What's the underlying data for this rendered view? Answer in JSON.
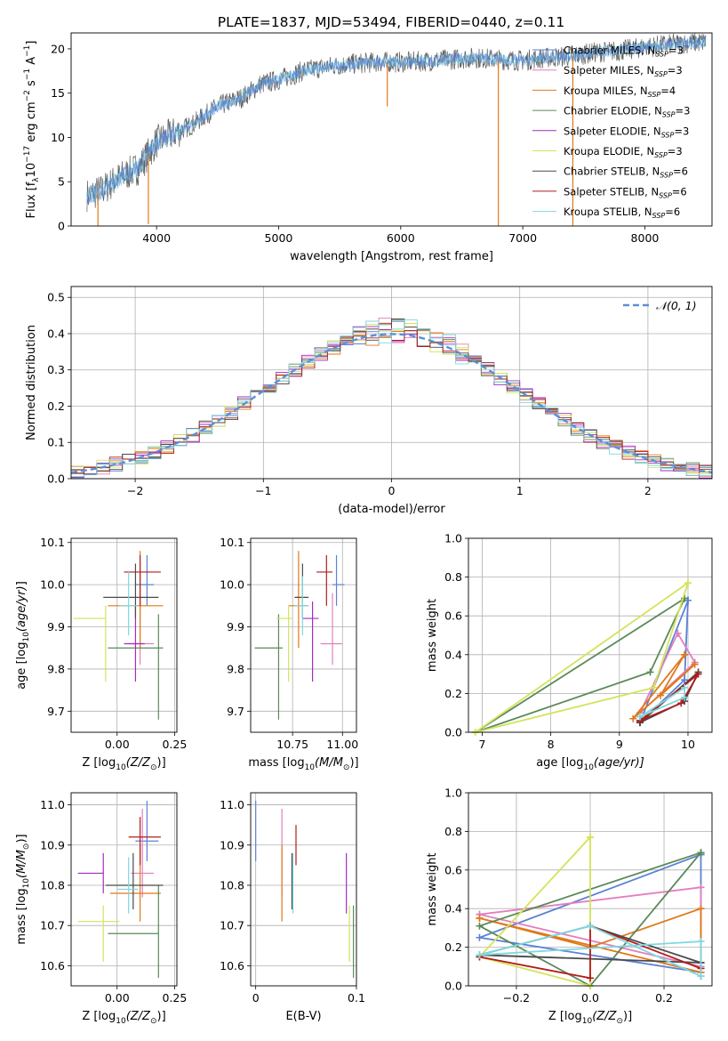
{
  "figure": {
    "title": "PLATE=1837, MJD=53494, FIBERID=0440, z=0.11"
  },
  "legend": [
    {
      "label": "Chabrier MILES, N",
      "sub": "SSP",
      "tail": "=3",
      "color": "#5b82d6"
    },
    {
      "label": "Salpeter MILES, N",
      "sub": "SSP",
      "tail": "=3",
      "color": "#e27fc0"
    },
    {
      "label": "Kroupa MILES, N",
      "sub": "SSP",
      "tail": "=4",
      "color": "#e0791a"
    },
    {
      "label": "Chabrier ELODIE, N",
      "sub": "SSP",
      "tail": "=3",
      "color": "#5a8a5a"
    },
    {
      "label": "Salpeter ELODIE, N",
      "sub": "SSP",
      "tail": "=3",
      "color": "#a32cc0"
    },
    {
      "label": "Kroupa ELODIE, N",
      "sub": "SSP",
      "tail": "=3",
      "color": "#d4e35a"
    },
    {
      "label": "Chabrier STELIB, N",
      "sub": "SSP",
      "tail": "=6",
      "color": "#4a4a4a"
    },
    {
      "label": "Salpeter STELIB, N",
      "sub": "SSP",
      "tail": "=6",
      "color": "#b31b1b"
    },
    {
      "label": "Kroupa STELIB, N",
      "sub": "SSP",
      "tail": "=6",
      "color": "#7fd8e0"
    }
  ],
  "chart_data": [
    {
      "id": "spectrum",
      "type": "line",
      "xlabel": "wavelength [Angstrom, rest frame]",
      "ylabel": "Flux [f",
      "xlim": [
        3300,
        8550
      ],
      "ylim": [
        0,
        21.8
      ],
      "xticks": [
        "4000",
        "5000",
        "6000",
        "7000",
        "8000"
      ],
      "yticks": [
        "0",
        "5",
        "10",
        "15",
        "20"
      ],
      "x": [
        3450,
        3550,
        3700,
        3850,
        4000,
        4150,
        4300,
        4500,
        4700,
        4850,
        5000,
        5200,
        5400,
        5600,
        5800,
        6000,
        6200,
        6400,
        6600,
        6800,
        7000,
        7200,
        7400,
        7600,
        7800,
        8000,
        8200,
        8400,
        8500
      ],
      "values": [
        3.5,
        4.0,
        5.5,
        6.5,
        9.5,
        10.5,
        11.5,
        13.5,
        14.5,
        16.0,
        16.5,
        17.5,
        18.0,
        18.3,
        18.5,
        18.5,
        18.6,
        18.8,
        19.0,
        18.8,
        18.7,
        19.0,
        19.2,
        19.6,
        19.8,
        20.2,
        20.5,
        20.7,
        20.8
      ],
      "grid": false,
      "legend_position": "top-right"
    },
    {
      "id": "residuals",
      "type": "line",
      "xlabel": "(data-model)/error",
      "ylabel": "Normed distribution",
      "xlim": [
        -2.5,
        2.5
      ],
      "ylim": [
        0,
        0.53
      ],
      "xticks": [
        "−2",
        "−1",
        "0",
        "1",
        "2"
      ],
      "yticks": [
        "0.0",
        "0.1",
        "0.2",
        "0.3",
        "0.4",
        "0.5"
      ],
      "bin_width": 0.1,
      "hist_max": [
        0.02,
        0.03,
        0.04,
        0.045,
        0.05,
        0.07,
        0.08,
        0.1,
        0.12,
        0.14,
        0.17,
        0.2,
        0.23,
        0.25,
        0.28,
        0.31,
        0.34,
        0.37,
        0.39,
        0.39,
        0.4,
        0.42,
        0.43,
        0.45,
        0.47,
        0.51,
        0.48,
        0.45,
        0.42,
        0.38,
        0.33,
        0.3,
        0.27,
        0.24,
        0.21,
        0.18,
        0.15,
        0.12,
        0.1,
        0.09,
        0.08,
        0.07,
        0.06,
        0.055,
        0.05,
        0.04,
        0.035,
        0.03,
        0.025,
        0.02
      ],
      "series": [
        {
          "name": "𝒩(0, 1)",
          "mean": 0,
          "sigma": 1
        }
      ],
      "grid": true,
      "legend_position": "top-right"
    },
    {
      "id": "Z-age",
      "type": "scatter",
      "xlabel": "Z [log",
      "ylabel": "age  [log",
      "xlim": [
        -0.2,
        0.26
      ],
      "ylim": [
        9.65,
        10.11
      ],
      "xticks": [
        "0.00",
        "0.25"
      ],
      "yticks": [
        "9.7",
        "9.8",
        "9.9",
        "10.0",
        "10.1"
      ],
      "points": [
        {
          "x": 0.13,
          "y": 10.0,
          "xerr": [
            0.05,
            0.03
          ],
          "yerr": [
            0.05,
            0.07
          ],
          "color": "#5b82d6"
        },
        {
          "x": 0.1,
          "y": 9.86,
          "xerr": [
            0.05,
            0.06
          ],
          "yerr": [
            0.05,
            0.12
          ],
          "color": "#e27fc0"
        },
        {
          "x": 0.1,
          "y": 9.95,
          "xerr": [
            0.14,
            0.1
          ],
          "yerr": [
            0.1,
            0.13
          ],
          "color": "#e0791a"
        },
        {
          "x": 0.18,
          "y": 9.85,
          "xerr": [
            0.22,
            0.02
          ],
          "yerr": [
            0.17,
            0.08
          ],
          "color": "#5a8a5a"
        },
        {
          "x": 0.08,
          "y": 9.86,
          "xerr": [
            0.05,
            0.04
          ],
          "yerr": [
            0.09,
            0.09
          ],
          "color": "#a32cc0"
        },
        {
          "x": -0.05,
          "y": 9.92,
          "xerr": [
            0.14,
            0.0
          ],
          "yerr": [
            0.15,
            0.03
          ],
          "color": "#d4e35a"
        },
        {
          "x": 0.08,
          "y": 9.97,
          "xerr": [
            0.14,
            0.1
          ],
          "yerr": [
            0.05,
            0.08
          ],
          "color": "#4a4a4a"
        },
        {
          "x": 0.1,
          "y": 10.03,
          "xerr": [
            0.07,
            0.09
          ],
          "yerr": [
            0.08,
            0.04
          ],
          "color": "#b31b1b"
        },
        {
          "x": 0.05,
          "y": 9.95,
          "xerr": [
            0.04,
            0.04
          ],
          "yerr": [
            0.07,
            0.08
          ],
          "color": "#7fd8e0"
        }
      ],
      "grid": true
    },
    {
      "id": "mass-age",
      "type": "scatter",
      "xlabel": "mass [log",
      "ylabel": "",
      "xlim": [
        10.54,
        11.07
      ],
      "ylim": [
        9.65,
        10.11
      ],
      "xticks": [
        "10.75",
        "11.00"
      ],
      "yticks": [
        "9.7",
        "9.8",
        "9.9",
        "10.0",
        "10.1"
      ],
      "points": [
        {
          "x": 10.97,
          "y": 10.0,
          "xerr": [
            0.02,
            0.04
          ],
          "yerr": [
            0.05,
            0.07
          ],
          "color": "#5b82d6"
        },
        {
          "x": 10.95,
          "y": 9.86,
          "xerr": [
            0.06,
            0.05
          ],
          "yerr": [
            0.05,
            0.12
          ],
          "color": "#e27fc0"
        },
        {
          "x": 10.78,
          "y": 9.95,
          "xerr": [
            0.05,
            0.05
          ],
          "yerr": [
            0.1,
            0.13
          ],
          "color": "#e0791a"
        },
        {
          "x": 10.68,
          "y": 9.85,
          "xerr": [
            0.12,
            0.02
          ],
          "yerr": [
            0.17,
            0.08
          ],
          "color": "#5a8a5a"
        },
        {
          "x": 10.85,
          "y": 9.92,
          "xerr": [
            0.05,
            0.03
          ],
          "yerr": [
            0.15,
            0.04
          ],
          "color": "#a32cc0"
        },
        {
          "x": 10.73,
          "y": 9.92,
          "xerr": [
            0.06,
            0.02
          ],
          "yerr": [
            0.15,
            0.03
          ],
          "color": "#d4e35a"
        },
        {
          "x": 10.8,
          "y": 9.97,
          "xerr": [
            0.04,
            0.03
          ],
          "yerr": [
            0.05,
            0.08
          ],
          "color": "#4a4a4a"
        },
        {
          "x": 10.92,
          "y": 10.03,
          "xerr": [
            0.05,
            0.03
          ],
          "yerr": [
            0.08,
            0.04
          ],
          "color": "#b31b1b"
        },
        {
          "x": 10.8,
          "y": 9.95,
          "xerr": [
            0.04,
            0.03
          ],
          "yerr": [
            0.07,
            0.07
          ],
          "color": "#7fd8e0"
        }
      ],
      "grid": true
    },
    {
      "id": "age-weights",
      "type": "line",
      "xlabel": "age  [log",
      "ylabel": "mass weight",
      "xlim": [
        6.8,
        10.35
      ],
      "ylim": [
        0,
        1.0
      ],
      "xticks": [
        "7",
        "8",
        "9",
        "10"
      ],
      "yticks": [
        "0.0",
        "0.2",
        "0.4",
        "0.6",
        "0.8",
        "1.0"
      ],
      "series": [
        {
          "color": "#5b82d6",
          "x": [
            10.0,
            9.3,
            9.95,
            10.0
          ],
          "y": [
            0.68,
            0.05,
            0.27,
            0.68
          ]
        },
        {
          "color": "#e27fc0",
          "x": [
            9.85,
            9.3,
            10.1,
            9.85
          ],
          "y": [
            0.51,
            0.1,
            0.36,
            0.51
          ]
        },
        {
          "color": "#e0791a",
          "x": [
            9.95,
            9.2,
            10.1,
            9.6,
            9.95
          ],
          "y": [
            0.4,
            0.07,
            0.35,
            0.19,
            0.4
          ]
        },
        {
          "color": "#5a8a5a",
          "x": [
            9.95,
            6.9,
            9.45,
            9.95
          ],
          "y": [
            0.69,
            0.0,
            0.31,
            0.69
          ]
        },
        {
          "color": "#d4e35a",
          "x": [
            10.0,
            6.9,
            9.5,
            10.0
          ],
          "y": [
            0.77,
            0.0,
            0.23,
            0.77
          ]
        },
        {
          "color": "#4a4a4a",
          "x": [
            9.3,
            10.15,
            9.95,
            9.3
          ],
          "y": [
            0.05,
            0.31,
            0.16,
            0.05
          ]
        },
        {
          "color": "#b31b1b",
          "x": [
            9.3,
            10.15,
            9.9,
            9.3
          ],
          "y": [
            0.06,
            0.3,
            0.15,
            0.06
          ]
        },
        {
          "color": "#7fd8e0",
          "x": [
            9.3,
            9.95,
            9.95,
            9.3
          ],
          "y": [
            0.08,
            0.23,
            0.18,
            0.08
          ]
        }
      ],
      "grid": true
    },
    {
      "id": "Z-mass",
      "type": "scatter",
      "xlabel": "Z [log",
      "ylabel": "mass [log",
      "xlim": [
        -0.2,
        0.26
      ],
      "ylim": [
        10.55,
        11.03
      ],
      "xticks": [
        "0.00",
        "0.25"
      ],
      "yticks": [
        "10.6",
        "10.7",
        "10.8",
        "10.9",
        "11.0"
      ],
      "points": [
        {
          "x": 0.13,
          "y": 10.91,
          "xerr": [
            0.05,
            0.05
          ],
          "yerr": [
            0.05,
            0.1
          ],
          "color": "#5b82d6"
        },
        {
          "x": 0.11,
          "y": 10.83,
          "xerr": [
            0.05,
            0.05
          ],
          "yerr": [
            0.06,
            0.16
          ],
          "color": "#e27fc0"
        },
        {
          "x": 0.1,
          "y": 10.78,
          "xerr": [
            0.13,
            0.09
          ],
          "yerr": [
            0.07,
            0.12
          ],
          "color": "#e0791a"
        },
        {
          "x": 0.18,
          "y": 10.68,
          "xerr": [
            0.22,
            0.0
          ],
          "yerr": [
            0.11,
            0.12
          ],
          "color": "#5a8a5a"
        },
        {
          "x": -0.06,
          "y": 10.83,
          "xerr": [
            0.11,
            0.0
          ],
          "yerr": [
            0.05,
            0.05
          ],
          "color": "#a32cc0"
        },
        {
          "x": -0.06,
          "y": 10.71,
          "xerr": [
            0.11,
            0.07
          ],
          "yerr": [
            0.1,
            0.04
          ],
          "color": "#d4e35a"
        },
        {
          "x": 0.07,
          "y": 10.8,
          "xerr": [
            0.12,
            0.13
          ],
          "yerr": [
            0.06,
            0.08
          ],
          "color": "#4a4a4a"
        },
        {
          "x": 0.1,
          "y": 10.92,
          "xerr": [
            0.05,
            0.09
          ],
          "yerr": [
            0.07,
            0.05
          ],
          "color": "#b31b1b"
        },
        {
          "x": 0.05,
          "y": 10.79,
          "xerr": [
            0.05,
            0.04
          ],
          "yerr": [
            0.06,
            0.08
          ],
          "color": "#7fd8e0"
        }
      ],
      "grid": true
    },
    {
      "id": "ebv-mass",
      "type": "scatter",
      "xlabel": "E(B-V)",
      "ylabel": "",
      "xlim": [
        -0.005,
        0.1
      ],
      "ylim": [
        10.55,
        11.03
      ],
      "xticks": [
        "0",
        "0.1"
      ],
      "yticks": [
        "10.6",
        "10.7",
        "10.8",
        "10.9",
        "11.0"
      ],
      "points": [
        {
          "x": 0.0,
          "y": 10.91,
          "xerr": [
            0,
            0
          ],
          "yerr": [
            0.05,
            0.1
          ],
          "color": "#5b82d6"
        },
        {
          "x": 0.026,
          "y": 10.83,
          "xerr": [
            0,
            0
          ],
          "yerr": [
            0.06,
            0.16
          ],
          "color": "#e27fc0"
        },
        {
          "x": 0.026,
          "y": 10.78,
          "xerr": [
            0,
            0
          ],
          "yerr": [
            0.07,
            0.12
          ],
          "color": "#e0791a"
        },
        {
          "x": 0.097,
          "y": 10.68,
          "xerr": [
            0,
            0
          ],
          "yerr": [
            0.11,
            0.07
          ],
          "color": "#5a8a5a"
        },
        {
          "x": 0.09,
          "y": 10.8,
          "xerr": [
            0,
            0
          ],
          "yerr": [
            0.07,
            0.08
          ],
          "color": "#a32cc0"
        },
        {
          "x": 0.093,
          "y": 10.71,
          "xerr": [
            0,
            0
          ],
          "yerr": [
            0.1,
            0.04
          ],
          "color": "#d4e35a"
        },
        {
          "x": 0.036,
          "y": 10.8,
          "xerr": [
            0,
            0
          ],
          "yerr": [
            0.06,
            0.08
          ],
          "color": "#4a4a4a"
        },
        {
          "x": 0.04,
          "y": 10.9,
          "xerr": [
            0,
            0
          ],
          "yerr": [
            0.05,
            0.05
          ],
          "color": "#b31b1b"
        },
        {
          "x": 0.037,
          "y": 10.79,
          "xerr": [
            0,
            0
          ],
          "yerr": [
            0.06,
            0.09
          ],
          "color": "#7fd8e0"
        }
      ],
      "grid": true
    },
    {
      "id": "Z-weights",
      "type": "line",
      "xlabel": "Z [log",
      "ylabel": "mass weight",
      "xlim": [
        -0.33,
        0.33
      ],
      "ylim": [
        0,
        1.0
      ],
      "xticks": [
        "−0.2",
        "0.0",
        "0.2"
      ],
      "yticks": [
        "0.0",
        "0.2",
        "0.4",
        "0.6",
        "0.8",
        "1.0"
      ],
      "series": [
        {
          "color": "#5b82d6",
          "x": [
            0.3,
            -0.3,
            0.3,
            0.3
          ],
          "y": [
            0.68,
            0.25,
            0.07,
            0.68
          ]
        },
        {
          "color": "#e27fc0",
          "x": [
            -0.3,
            0.3,
            0.3,
            -0.3
          ],
          "y": [
            0.37,
            0.51,
            0.1,
            0.37
          ]
        },
        {
          "color": "#e0791a",
          "x": [
            -0.3,
            0.3,
            0.3,
            0.0,
            -0.3
          ],
          "y": [
            0.35,
            0.07,
            0.4,
            0.2,
            0.35
          ]
        },
        {
          "color": "#5a8a5a",
          "x": [
            0.3,
            0.0,
            -0.3,
            0.3
          ],
          "y": [
            0.69,
            0.0,
            0.31,
            0.69
          ]
        },
        {
          "color": "#d4e35a",
          "x": [
            0.0,
            0.0,
            -0.3,
            0.0
          ],
          "y": [
            0.77,
            0.0,
            0.15,
            0.77
          ]
        },
        {
          "color": "#4a4a4a",
          "x": [
            0.3,
            0.0,
            -0.3,
            0.3
          ],
          "y": [
            0.12,
            0.31,
            0.16,
            0.12
          ]
        },
        {
          "color": "#b31b1b",
          "x": [
            -0.3,
            0.0,
            0.0,
            0.3,
            0.3
          ],
          "y": [
            0.15,
            0.04,
            0.31,
            0.09,
            0.05
          ]
        },
        {
          "color": "#7fd8e0",
          "x": [
            -0.3,
            0.0,
            0.3,
            0.3,
            -0.3
          ],
          "y": [
            0.16,
            0.31,
            0.05,
            0.23,
            0.16
          ]
        }
      ],
      "grid": true
    }
  ]
}
